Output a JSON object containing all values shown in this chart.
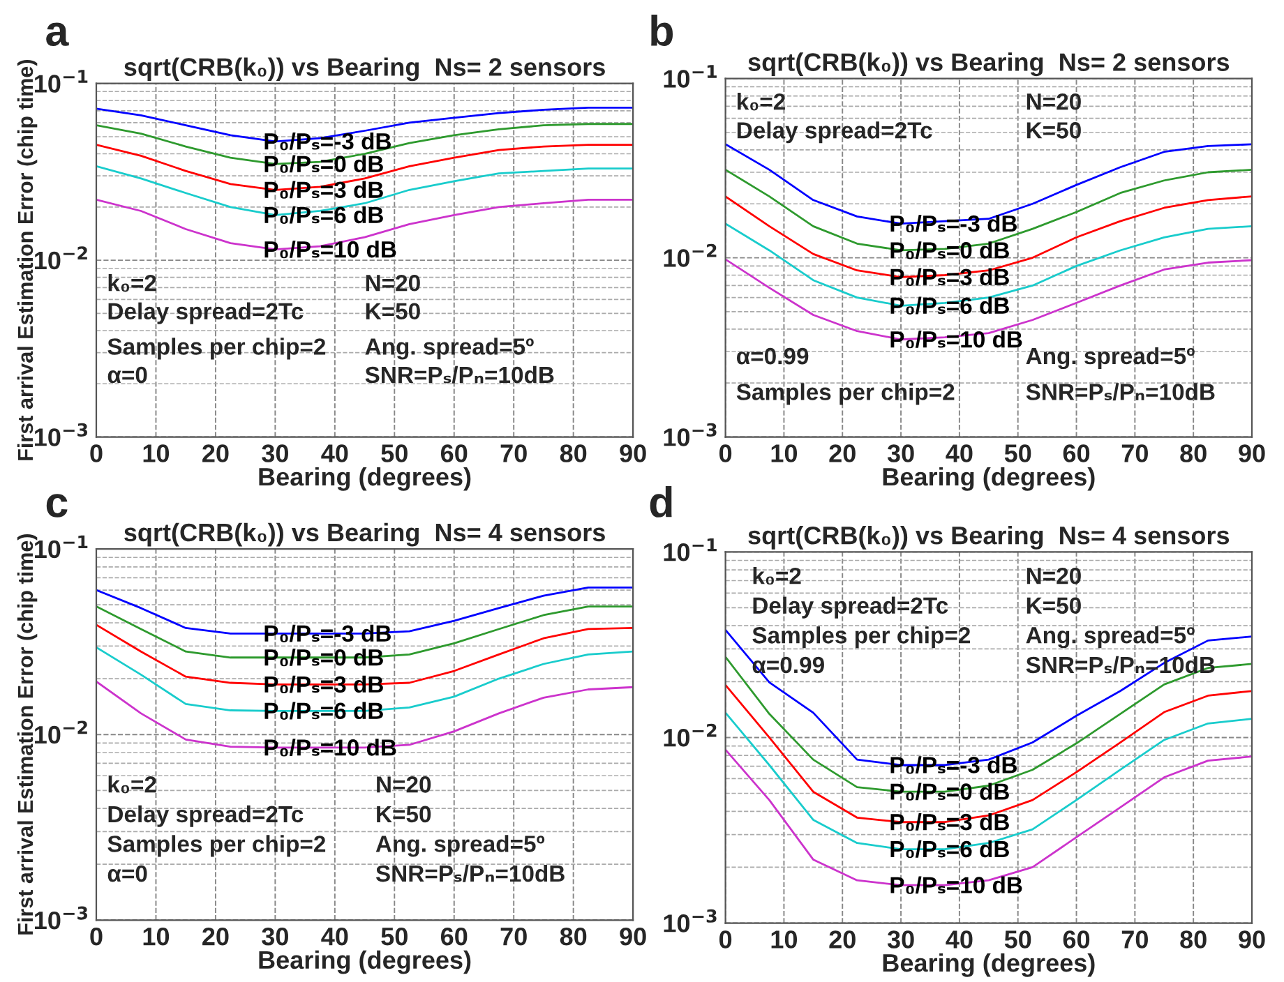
{
  "chart_data": [
    {
      "type": "line",
      "title": "sqrt(CRB(k₀)) vs Bearing  Ns= 2 sensors",
      "xlabel": "Bearing (degrees)",
      "ylabel": "First arrival Estimation Error (chip time)",
      "annotations": [
        "a",
        "k₀=2",
        "Delay spread=2Tc",
        "Samples per chip=2",
        "α=0",
        "N=20",
        "K=50",
        "Ang. spread=5º",
        "SNR=Pₛ/Pₙ=10dB"
      ],
      "x": [
        0,
        7.5,
        15,
        22.5,
        30,
        37.5,
        45,
        52.5,
        60,
        67.5,
        75,
        82.5,
        90
      ],
      "series": [
        {
          "name": "P₀/Pₛ=-3 dB",
          "color": "#0000ff",
          "values": [
            0.072,
            0.066,
            0.058,
            0.051,
            0.047,
            0.049,
            0.054,
            0.06,
            0.064,
            0.068,
            0.071,
            0.073,
            0.073
          ]
        },
        {
          "name": "P₀/Pₛ=0 dB",
          "color": "#2e9a2e",
          "values": [
            0.058,
            0.052,
            0.044,
            0.038,
            0.035,
            0.036,
            0.04,
            0.046,
            0.051,
            0.055,
            0.058,
            0.059,
            0.059
          ]
        },
        {
          "name": "P₀/Pₛ=3 dB",
          "color": "#ff0000",
          "values": [
            0.045,
            0.039,
            0.032,
            0.027,
            0.025,
            0.026,
            0.029,
            0.034,
            0.038,
            0.042,
            0.044,
            0.045,
            0.045
          ]
        },
        {
          "name": "P₀/Pₛ=6 dB",
          "color": "#19cccc",
          "values": [
            0.034,
            0.029,
            0.024,
            0.02,
            0.018,
            0.019,
            0.021,
            0.025,
            0.028,
            0.031,
            0.032,
            0.033,
            0.033
          ]
        },
        {
          "name": "P₀/Pₛ=10 dB",
          "color": "#cc33cc",
          "values": [
            0.022,
            0.019,
            0.015,
            0.0125,
            0.0115,
            0.012,
            0.0135,
            0.016,
            0.018,
            0.02,
            0.021,
            0.022,
            0.022
          ]
        }
      ],
      "xlim": [
        0,
        90
      ],
      "xticks": [
        0,
        10,
        20,
        30,
        40,
        50,
        60,
        70,
        80,
        90
      ],
      "ylim": [
        0.001,
        0.1
      ],
      "log": true,
      "yticks": [
        {
          "value": 0.001,
          "label": "10$^{−3}$"
        },
        {
          "value": 0.01,
          "label": "10$^{−2}$"
        },
        {
          "value": 0.1,
          "label": "10$^{−1}$"
        }
      ],
      "grid": true,
      "legend": false,
      "line_style": "solid",
      "marker": "none"
    },
    {
      "type": "line",
      "title": "sqrt(CRB(k₀)) vs Bearing  Ns= 2 sensors",
      "xlabel": "Bearing (degrees)",
      "annotations": [
        "b",
        "k₀=2",
        "Delay spread=2Tc",
        "α=0.99",
        "Samples per chip=2",
        "N=20",
        "K=50",
        "Ang. spread=5º",
        "SNR=Pₛ/Pₙ=10dB"
      ],
      "x": [
        0,
        7.5,
        15,
        22.5,
        30,
        37.5,
        45,
        52.5,
        60,
        67.5,
        75,
        82.5,
        90
      ],
      "series": [
        {
          "name": "P₀/Pₛ=-3 dB",
          "color": "#0000ff",
          "values": [
            0.043,
            0.031,
            0.021,
            0.017,
            0.0155,
            0.016,
            0.0165,
            0.02,
            0.0255,
            0.032,
            0.039,
            0.042,
            0.043
          ]
        },
        {
          "name": "P₀/Pₛ=0 dB",
          "color": "#2e9a2e",
          "values": [
            0.031,
            0.022,
            0.015,
            0.012,
            0.011,
            0.0112,
            0.012,
            0.0145,
            0.018,
            0.023,
            0.027,
            0.03,
            0.031
          ]
        },
        {
          "name": "P₀/Pₛ=3 dB",
          "color": "#ff0000",
          "values": [
            0.022,
            0.015,
            0.0105,
            0.0085,
            0.0078,
            0.008,
            0.0085,
            0.01,
            0.013,
            0.016,
            0.019,
            0.021,
            0.022
          ]
        },
        {
          "name": "P₀/Pₛ=6 dB",
          "color": "#19cccc",
          "values": [
            0.0155,
            0.011,
            0.0075,
            0.006,
            0.0054,
            0.0056,
            0.006,
            0.007,
            0.009,
            0.011,
            0.013,
            0.0145,
            0.015
          ]
        },
        {
          "name": "P₀/Pₛ=10 dB",
          "color": "#cc33cc",
          "values": [
            0.0098,
            0.0068,
            0.0048,
            0.0039,
            0.0035,
            0.0036,
            0.0038,
            0.0045,
            0.0056,
            0.007,
            0.0086,
            0.0094,
            0.0097
          ]
        }
      ],
      "xlim": [
        0,
        90
      ],
      "xticks": [
        0,
        10,
        20,
        30,
        40,
        50,
        60,
        70,
        80,
        90
      ],
      "ylim": [
        0.001,
        0.1
      ],
      "log": true,
      "yticks": [
        {
          "value": 0.001,
          "label": "10$^{−3}$"
        },
        {
          "value": 0.01,
          "label": "10$^{−2}$"
        },
        {
          "value": 0.1,
          "label": "10$^{−1}$"
        }
      ],
      "grid": true,
      "legend": false,
      "line_style": "solid",
      "marker": "none"
    },
    {
      "type": "line",
      "title": "sqrt(CRB(k₀)) vs Bearing  Ns= 4 sensors",
      "xlabel": "Bearing (degrees)",
      "ylabel": "First arrival Estimation Error (chip time)",
      "annotations": [
        "c",
        "k₀=2",
        "Delay spread=2Tc",
        "Samples per chip=2",
        "α=0",
        "N=20",
        "K=50",
        "Ang. spread=5º",
        "SNR=Pₛ/Pₙ=10dB"
      ],
      "x": [
        0,
        7.5,
        15,
        22.5,
        30,
        37.5,
        45,
        52.5,
        60,
        67.5,
        75,
        82.5,
        90
      ],
      "series": [
        {
          "name": "P₀/Pₛ=-3 dB",
          "color": "#0000ff",
          "values": [
            0.06,
            0.048,
            0.0375,
            0.035,
            0.035,
            0.035,
            0.035,
            0.036,
            0.041,
            0.048,
            0.056,
            0.062,
            0.062
          ]
        },
        {
          "name": "P₀/Pₛ=0 dB",
          "color": "#2e9a2e",
          "values": [
            0.049,
            0.037,
            0.028,
            0.026,
            0.026,
            0.026,
            0.026,
            0.027,
            0.031,
            0.037,
            0.044,
            0.049,
            0.049
          ]
        },
        {
          "name": "P₀/Pₛ=3 dB",
          "color": "#ff0000",
          "values": [
            0.039,
            0.028,
            0.0205,
            0.019,
            0.0186,
            0.0186,
            0.0186,
            0.019,
            0.022,
            0.027,
            0.033,
            0.037,
            0.0375
          ]
        },
        {
          "name": "P₀/Pₛ=6 dB",
          "color": "#19cccc",
          "values": [
            0.0295,
            0.021,
            0.0146,
            0.0135,
            0.0134,
            0.0134,
            0.0134,
            0.014,
            0.016,
            0.02,
            0.024,
            0.027,
            0.028
          ]
        },
        {
          "name": "P₀/Pₛ=10 dB",
          "color": "#cc33cc",
          "values": [
            0.0193,
            0.013,
            0.0094,
            0.0086,
            0.0085,
            0.0085,
            0.0085,
            0.0088,
            0.0104,
            0.013,
            0.0158,
            0.0175,
            0.018
          ]
        }
      ],
      "xlim": [
        0,
        90
      ],
      "xticks": [
        0,
        10,
        20,
        30,
        40,
        50,
        60,
        70,
        80,
        90
      ],
      "ylim": [
        0.001,
        0.1
      ],
      "log": true,
      "yticks": [
        {
          "value": 0.001,
          "label": "10$^{−3}$"
        },
        {
          "value": 0.01,
          "label": "10$^{−2}$"
        },
        {
          "value": 0.1,
          "label": "10$^{−1}$"
        }
      ],
      "grid": true,
      "legend": false,
      "line_style": "solid",
      "marker": "none"
    },
    {
      "type": "line",
      "title": "sqrt(CRB(k₀)) vs Bearing  Ns= 4 sensors",
      "xlabel": "Bearing (degrees)",
      "annotations": [
        "d",
        "k₀=2",
        "Delay spread=2Tc",
        "Samples per chip=2",
        "α=0.99",
        "N=20",
        "K=50",
        "Ang. spread=5º",
        "SNR=Pₛ/Pₙ=10dB"
      ],
      "x": [
        0,
        7.5,
        15,
        22.5,
        30,
        37.5,
        45,
        52.5,
        60,
        67.5,
        75,
        82.5,
        90
      ],
      "series": [
        {
          "name": "P₀/Pₛ=-3 dB",
          "color": "#0000ff",
          "values": [
            0.038,
            0.0198,
            0.0136,
            0.0076,
            0.0071,
            0.0071,
            0.0076,
            0.0094,
            0.0131,
            0.0178,
            0.0252,
            0.0333,
            0.035
          ]
        },
        {
          "name": "P₀/Pₛ=0 dB",
          "color": "#2e9a2e",
          "values": [
            0.0272,
            0.0134,
            0.0076,
            0.0054,
            0.0051,
            0.0051,
            0.0055,
            0.0067,
            0.0093,
            0.0134,
            0.0193,
            0.0237,
            0.0249
          ]
        },
        {
          "name": "P₀/Pₛ=3 dB",
          "color": "#ff0000",
          "values": [
            0.0192,
            0.01,
            0.0051,
            0.0037,
            0.0035,
            0.0035,
            0.0038,
            0.0046,
            0.0065,
            0.0094,
            0.0137,
            0.0168,
            0.0178
          ]
        },
        {
          "name": "P₀/Pₛ=6 dB",
          "color": "#19cccc",
          "values": [
            0.0136,
            0.0071,
            0.0036,
            0.0027,
            0.0025,
            0.0025,
            0.0027,
            0.0032,
            0.0046,
            0.0067,
            0.0097,
            0.0119,
            0.0126
          ]
        },
        {
          "name": "P₀/Pₛ=10 dB",
          "color": "#cc33cc",
          "values": [
            0.0086,
            0.0046,
            0.0022,
            0.0017,
            0.0016,
            0.0016,
            0.0017,
            0.002,
            0.0029,
            0.0042,
            0.0061,
            0.0075,
            0.0079
          ]
        }
      ],
      "xlim": [
        0,
        90
      ],
      "xticks": [
        0,
        10,
        20,
        30,
        40,
        50,
        60,
        70,
        80,
        90
      ],
      "ylim": [
        0.001,
        0.1
      ],
      "log": true,
      "yticks": [
        {
          "value": 0.001,
          "label": "10$^{−3}$"
        },
        {
          "value": 0.01,
          "label": "10$^{−2}$"
        },
        {
          "value": 0.1,
          "label": "10$^{−1}$"
        }
      ],
      "grid": true,
      "legend": false,
      "line_style": "solid",
      "marker": "none"
    }
  ]
}
